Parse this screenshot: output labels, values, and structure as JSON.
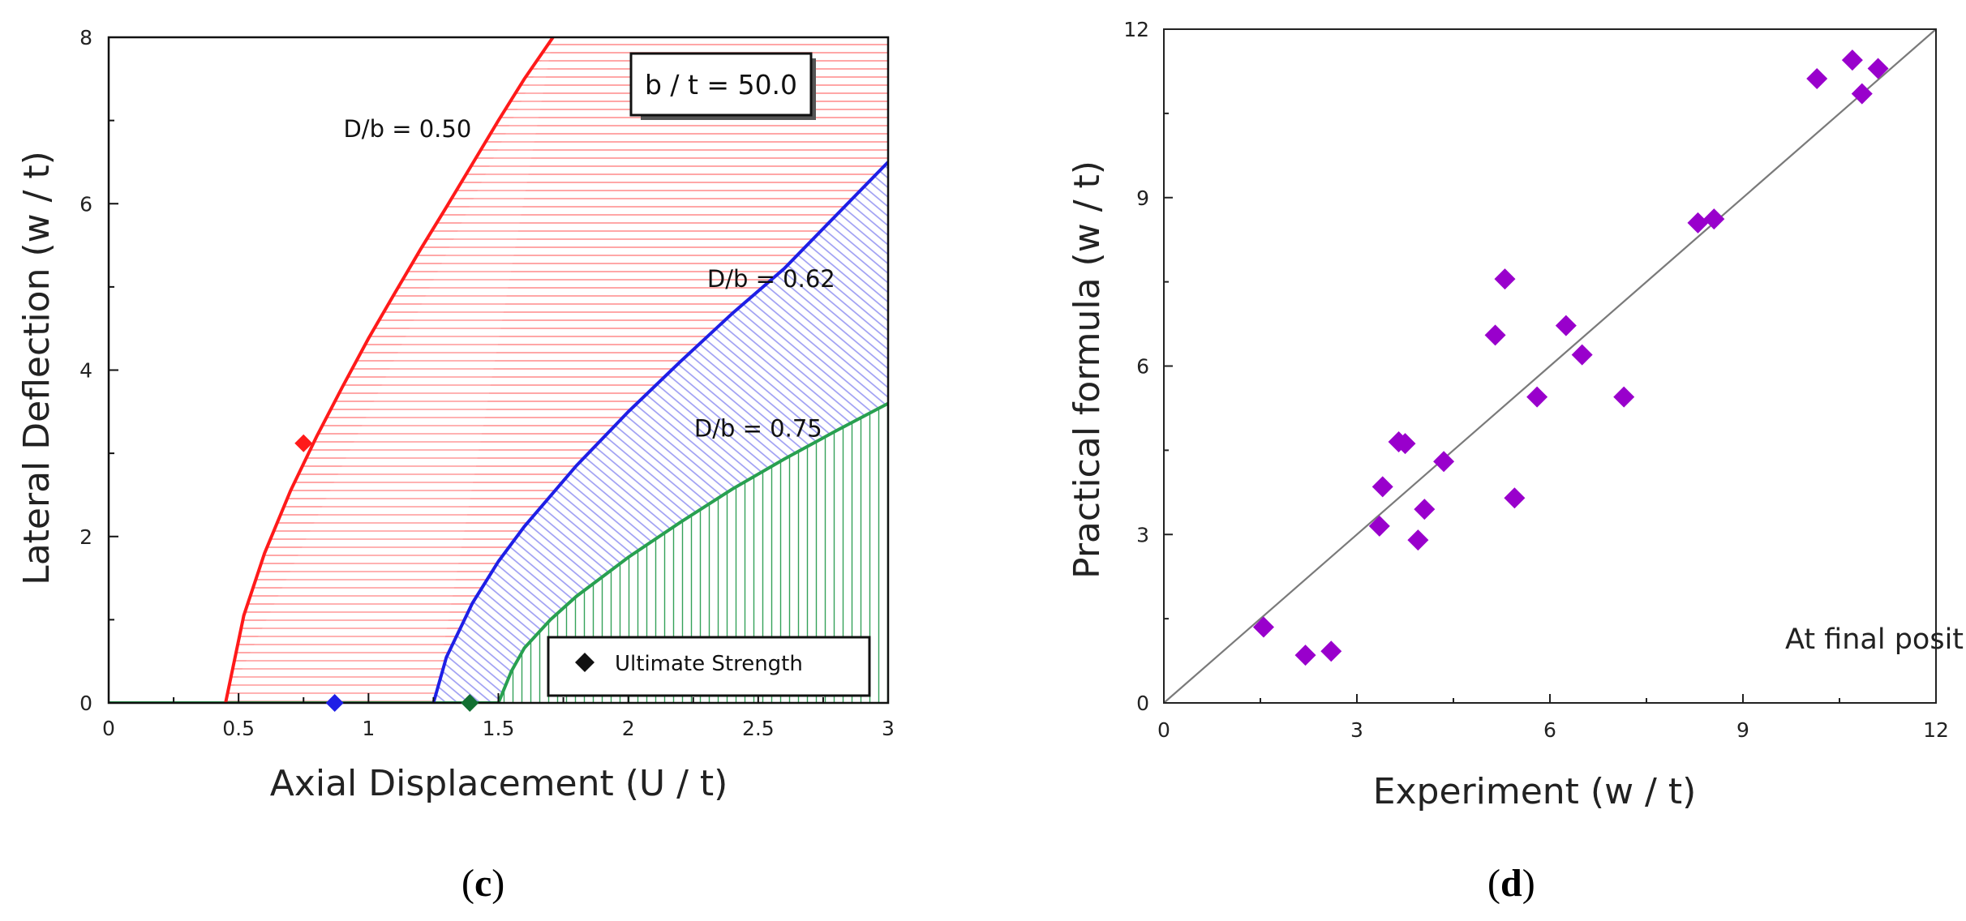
{
  "colors": {
    "red": "#ff1a1a",
    "red_hatch": "#ff9f9f",
    "blue": "#1f1fe6",
    "blue_hatch": "#9a9af2",
    "green": "#28a050",
    "green_hatch": "#35a25a",
    "green_marker": "#127032",
    "purple": "#9900cc",
    "black": "#000000",
    "grey_line": "#7a7a7a"
  },
  "captions": {
    "c": {
      "open": "(",
      "letter": "c",
      "close": ")"
    },
    "d": {
      "open": "(",
      "letter": "d",
      "close": ")"
    }
  },
  "chart_data": [
    {
      "id": "c",
      "type": "line",
      "title": "",
      "xlabel": "Axial Displacement (U / t)",
      "ylabel": "Lateral Deflection (w / t)",
      "xlim": [
        0,
        3
      ],
      "ylim": [
        0,
        8
      ],
      "xticks": [
        0,
        0.5,
        1,
        1.5,
        2,
        2.5,
        3
      ],
      "xtick_labels": [
        "0",
        "0.5",
        "1",
        "1.5",
        "2",
        "2.5",
        "3"
      ],
      "yticks": [
        0,
        2,
        4,
        6,
        8
      ],
      "ytick_labels": [
        "0",
        "2",
        "4",
        "6",
        "8"
      ],
      "box_label": "b / t = 50.0",
      "legend": {
        "placement": "bottom-right",
        "label": "Ultimate Strength",
        "marker": "diamond"
      },
      "series": [
        {
          "name": "D/b = 0.50",
          "color_key": "red",
          "hatch": "horizontal",
          "onset_x": 0.45,
          "x": [
            0.45,
            0.52,
            0.6,
            0.7,
            0.8,
            0.9,
            1.0,
            1.1,
            1.2,
            1.3,
            1.4,
            1.5,
            1.6,
            1.71
          ],
          "y": [
            0,
            1.05,
            1.8,
            2.55,
            3.2,
            3.8,
            4.38,
            4.92,
            5.45,
            5.96,
            6.48,
            7.0,
            7.5,
            8.0
          ],
          "ultimate_strength": [
            0.75,
            3.12
          ]
        },
        {
          "name": "D/b = 0.62",
          "color_key": "blue",
          "hatch": "diagonal",
          "onset_x": 1.25,
          "x": [
            1.25,
            1.3,
            1.4,
            1.5,
            1.6,
            1.8,
            2.0,
            2.2,
            2.4,
            2.6,
            2.8,
            3.0
          ],
          "y": [
            0,
            0.55,
            1.2,
            1.7,
            2.12,
            2.85,
            3.5,
            4.1,
            4.68,
            5.22,
            5.86,
            6.5
          ],
          "ultimate_strength": [
            0.87,
            0.0
          ]
        },
        {
          "name": "D/b = 0.75",
          "color_key": "green",
          "hatch": "vertical",
          "onset_x": 1.5,
          "x": [
            1.5,
            1.55,
            1.6,
            1.7,
            1.8,
            2.0,
            2.2,
            2.4,
            2.6,
            2.8,
            3.0
          ],
          "y": [
            0,
            0.38,
            0.66,
            1.0,
            1.28,
            1.75,
            2.17,
            2.57,
            2.93,
            3.27,
            3.6
          ],
          "ultimate_strength": [
            1.39,
            0.0
          ]
        }
      ],
      "curve_label_positions": [
        [
          1.15,
          6.8
        ],
        [
          2.55,
          5.0
        ],
        [
          2.5,
          3.2
        ]
      ]
    },
    {
      "id": "d",
      "type": "scatter",
      "title": "",
      "xlabel": "Experiment (w / t)",
      "ylabel": "Practical formula (w / t)",
      "xlim": [
        0,
        12
      ],
      "ylim": [
        0,
        12
      ],
      "xticks": [
        0,
        3,
        6,
        9,
        12
      ],
      "xtick_labels": [
        "0",
        "3",
        "6",
        "9",
        "12"
      ],
      "yticks": [
        0,
        3,
        6,
        9,
        12
      ],
      "ytick_labels": [
        "0",
        "3",
        "6",
        "9",
        "12"
      ],
      "annotation": "At final position",
      "reference_line": [
        [
          0,
          0
        ],
        [
          12,
          12
        ]
      ],
      "points": [
        [
          1.55,
          1.35
        ],
        [
          2.2,
          0.85
        ],
        [
          2.6,
          0.92
        ],
        [
          3.35,
          3.15
        ],
        [
          3.4,
          3.85
        ],
        [
          3.65,
          4.65
        ],
        [
          3.75,
          4.62
        ],
        [
          3.95,
          2.9
        ],
        [
          4.05,
          3.45
        ],
        [
          4.35,
          4.3
        ],
        [
          5.15,
          6.55
        ],
        [
          5.3,
          7.55
        ],
        [
          5.45,
          3.65
        ],
        [
          5.8,
          5.45
        ],
        [
          6.25,
          6.72
        ],
        [
          6.5,
          6.2
        ],
        [
          7.15,
          5.45
        ],
        [
          8.3,
          8.55
        ],
        [
          8.55,
          8.62
        ],
        [
          10.15,
          11.12
        ],
        [
          10.7,
          11.45
        ],
        [
          10.85,
          10.85
        ],
        [
          11.1,
          11.3
        ]
      ]
    }
  ]
}
